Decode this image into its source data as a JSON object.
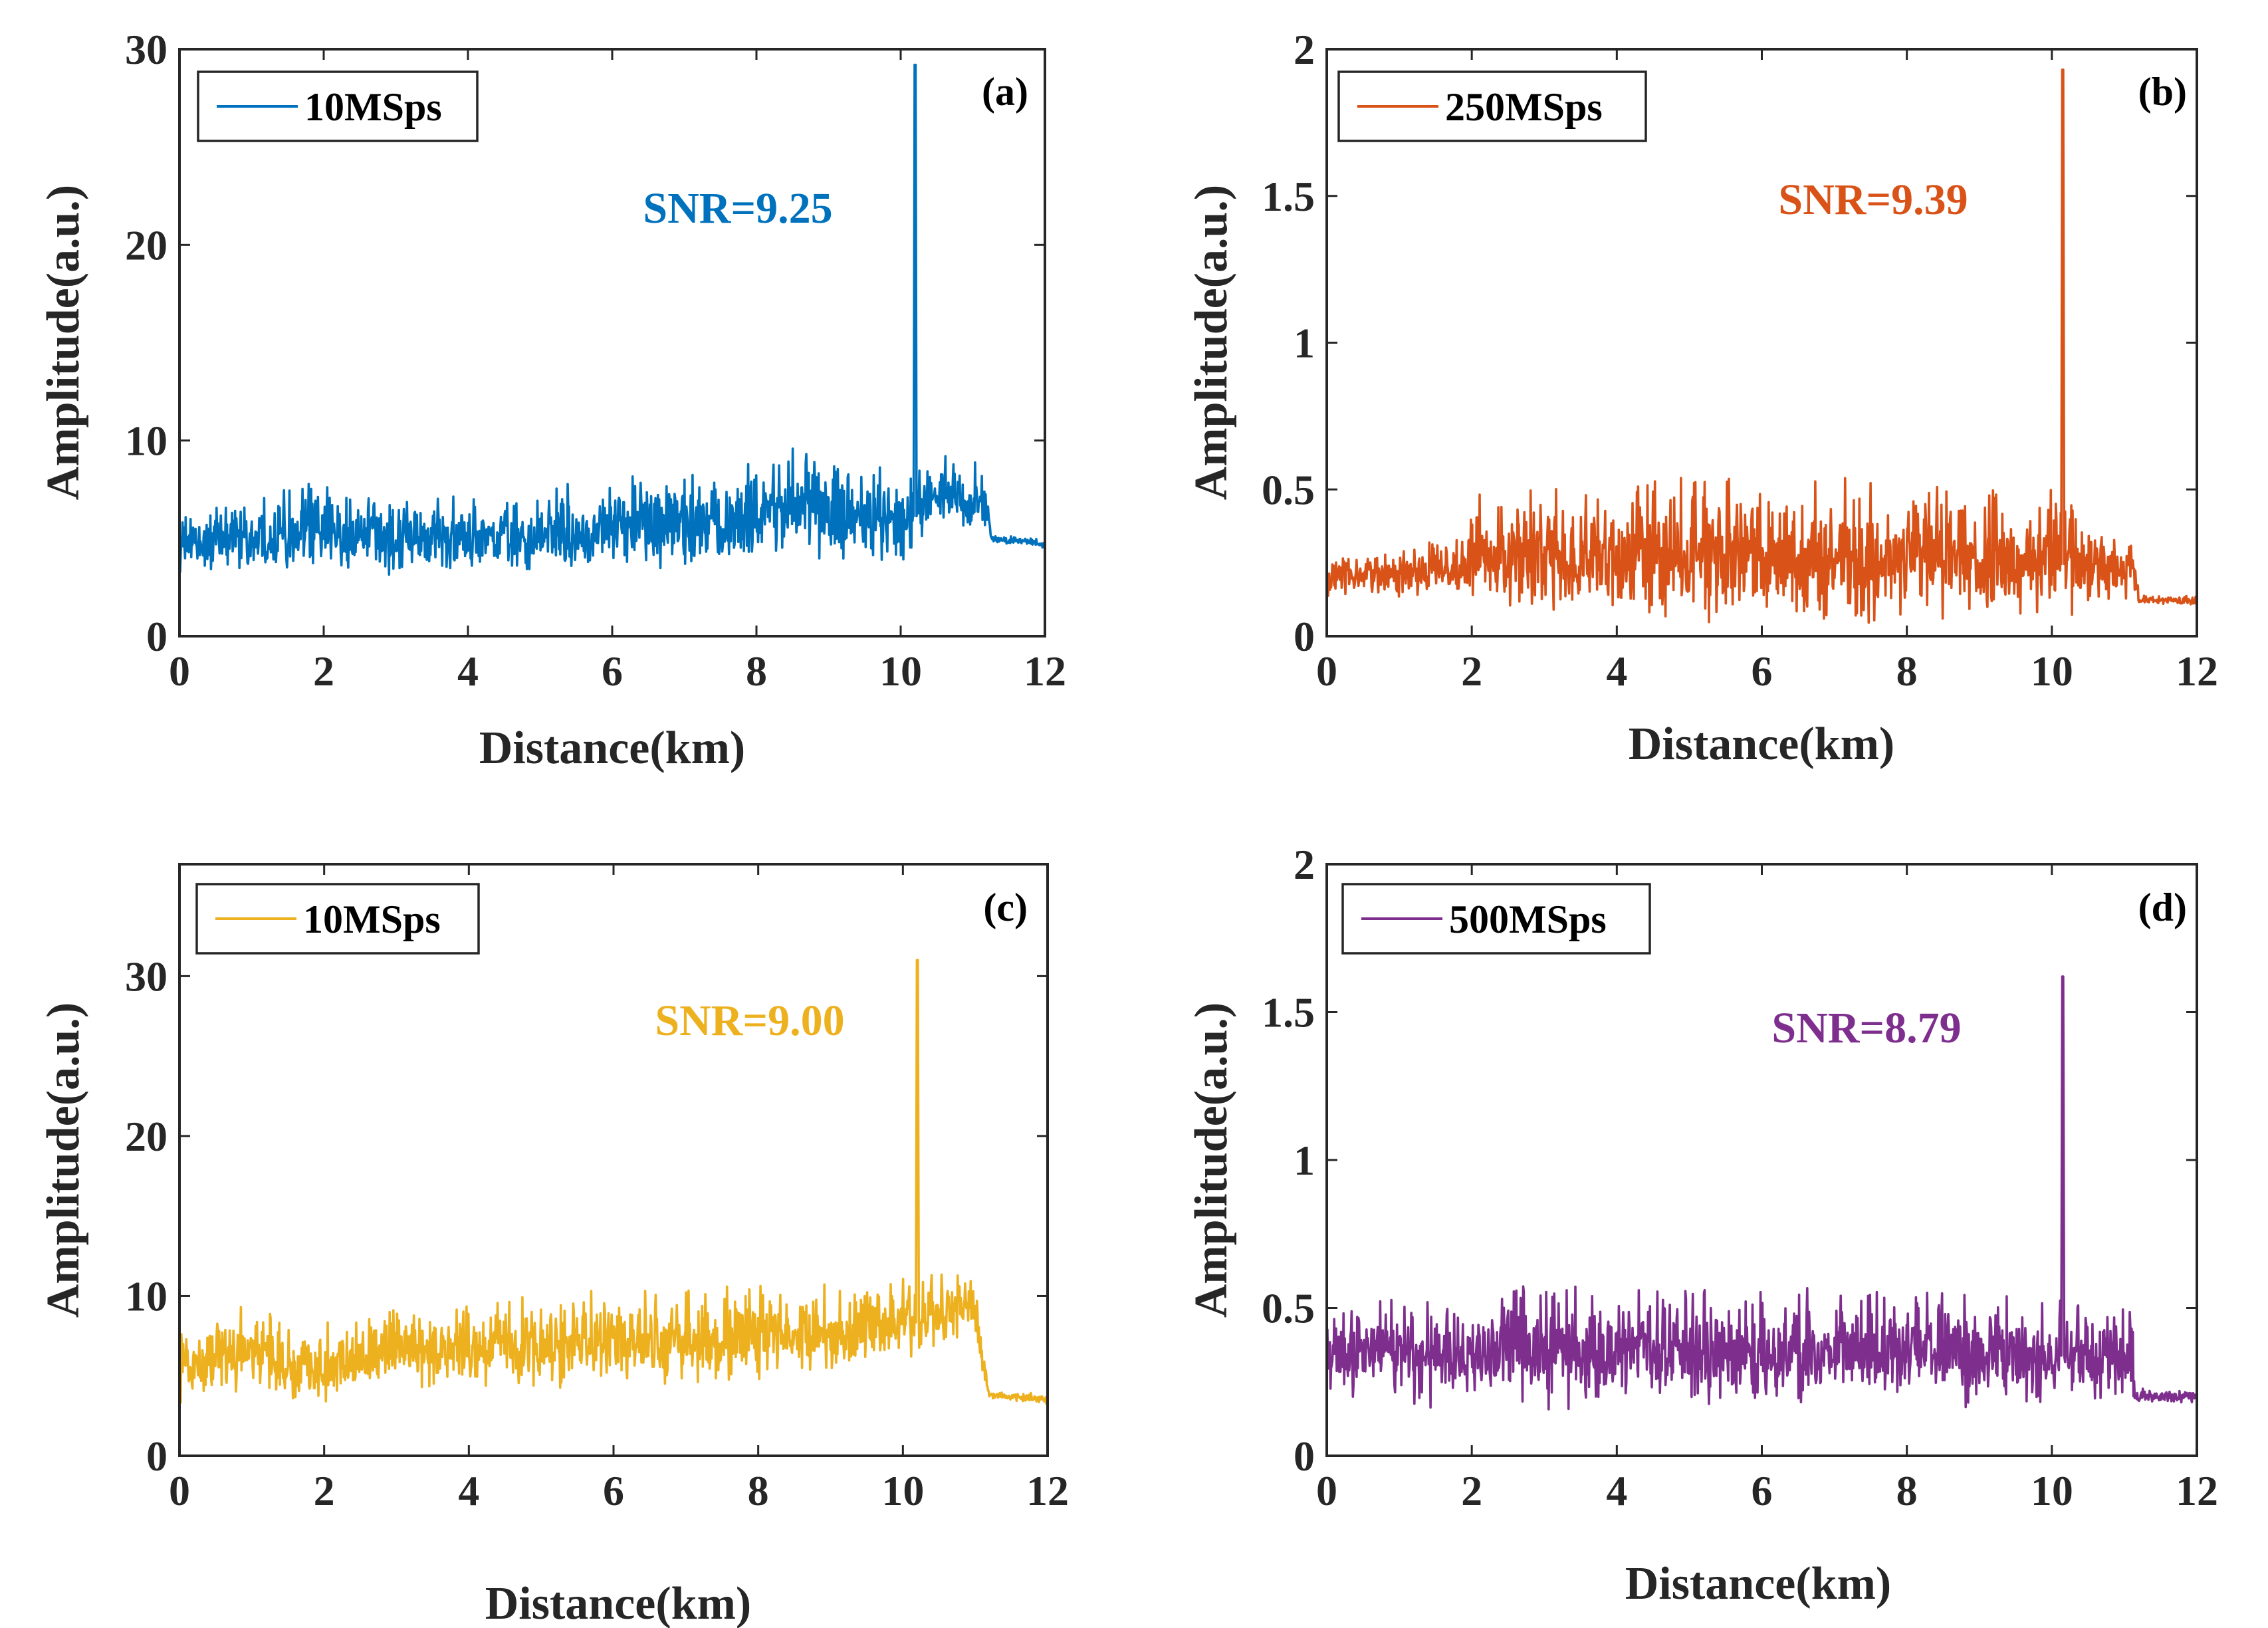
{
  "chart_data": [
    {
      "type": "line",
      "panel_label": "(a)",
      "xlabel": "Distance(km)",
      "ylabel": "Amplitude(a.u.)",
      "xlim": [
        0,
        12
      ],
      "ylim": [
        0,
        30
      ],
      "xticks": [
        "0",
        "2",
        "4",
        "6",
        "8",
        "10",
        "12"
      ],
      "yticks": [
        "0",
        "10",
        "20",
        "30"
      ],
      "legend": "top-left",
      "series": [
        {
          "name": "10MSps",
          "color": "#0072BD",
          "trend": [
            [
              0,
              4.7
            ],
            [
              1.8,
              5.3
            ],
            [
              2.2,
              5.0
            ],
            [
              3,
              5.0
            ],
            [
              4,
              4.9
            ],
            [
              5,
              5.0
            ],
            [
              6,
              5.5
            ],
            [
              7,
              5.4
            ],
            [
              8,
              6.0
            ],
            [
              8.6,
              7.0
            ],
            [
              9.2,
              6.0
            ],
            [
              10.1,
              5.6
            ],
            [
              10.4,
              7.2
            ],
            [
              11.2,
              6.8
            ],
            [
              11.25,
              5.0
            ],
            [
              12,
              4.7
            ]
          ],
          "noise_amplitude": [
            [
              0,
              1.1
            ],
            [
              1.8,
              1.4
            ],
            [
              4,
              1.3
            ],
            [
              6,
              1.5
            ],
            [
              8.6,
              1.9
            ],
            [
              10.1,
              1.5
            ],
            [
              11.2,
              1.2
            ],
            [
              11.25,
              0.15
            ],
            [
              12,
              0.15
            ]
          ],
          "peak": {
            "x": 10.2,
            "y": 29.2
          }
        }
      ],
      "annotation": {
        "text": "SNR=9.25",
        "color": "#0072BD"
      }
    },
    {
      "type": "line",
      "panel_label": "(b)",
      "xlabel": "Distance(km)",
      "ylabel": "Amplitude(a.u.)",
      "xlim": [
        0,
        12
      ],
      "ylim": [
        0,
        2
      ],
      "xticks": [
        "0",
        "2",
        "4",
        "6",
        "8",
        "10",
        "12"
      ],
      "yticks": [
        "0",
        "0.5",
        "1",
        "1.5",
        "2"
      ],
      "legend": "top-left",
      "series": [
        {
          "name": "250MSps",
          "color": "#D95319",
          "trend": [
            [
              0,
              0.13
            ],
            [
              0.1,
              0.2
            ],
            [
              1.95,
              0.22
            ],
            [
              2.0,
              0.26
            ],
            [
              6,
              0.27
            ],
            [
              10,
              0.25
            ],
            [
              11.15,
              0.22
            ],
            [
              11.2,
              0.12
            ],
            [
              12,
              0.12
            ]
          ],
          "noise_amplitude": [
            [
              0,
              0.05
            ],
            [
              1.95,
              0.07
            ],
            [
              2.0,
              0.14
            ],
            [
              6.4,
              0.16
            ],
            [
              10,
              0.14
            ],
            [
              11.15,
              0.06
            ],
            [
              11.2,
              0.01
            ],
            [
              12,
              0.01
            ]
          ],
          "peak": {
            "x": 10.15,
            "y": 1.93
          }
        }
      ],
      "annotation": {
        "text": "SNR=9.39",
        "color": "#D95319"
      }
    },
    {
      "type": "line",
      "panel_label": "(c)",
      "xlabel": "Distance(km)",
      "ylabel": "Amplitude(a.u.)",
      "xlim": [
        0,
        12
      ],
      "ylim": [
        0,
        37
      ],
      "xticks": [
        "0",
        "2",
        "4",
        "6",
        "8",
        "10",
        "12"
      ],
      "yticks": [
        "0",
        "10",
        "20",
        "30"
      ],
      "legend": "top-left",
      "series": [
        {
          "name": "10MSps",
          "color": "#EDB120",
          "trend": [
            [
              0,
              5.5
            ],
            [
              1.0,
              6.5
            ],
            [
              1.6,
              5.0
            ],
            [
              3,
              6.5
            ],
            [
              6,
              7.0
            ],
            [
              9,
              7.5
            ],
            [
              10.1,
              8.2
            ],
            [
              11.0,
              9.5
            ],
            [
              11.1,
              6.0
            ],
            [
              11.2,
              3.8
            ],
            [
              12,
              3.5
            ]
          ],
          "noise_amplitude": [
            [
              0,
              1.6
            ],
            [
              5.5,
              1.9
            ],
            [
              10,
              1.8
            ],
            [
              11.0,
              1.2
            ],
            [
              11.2,
              0.2
            ],
            [
              12,
              0.2
            ]
          ],
          "peak": {
            "x": 10.2,
            "y": 31.0
          }
        }
      ],
      "annotation": {
        "text": "SNR=9.00",
        "color": "#EDB120"
      }
    },
    {
      "type": "line",
      "panel_label": "(d)",
      "xlabel": "Distance(km)",
      "ylabel": "Amplitude(a.u.)",
      "xlim": [
        0,
        12
      ],
      "ylim": [
        0,
        2
      ],
      "xticks": [
        "0",
        "2",
        "4",
        "6",
        "8",
        "10",
        "12"
      ],
      "yticks": [
        "0",
        "0.5",
        "1",
        "1.5",
        "2"
      ],
      "legend": "top-left",
      "series": [
        {
          "name": "500MSps",
          "color": "#7E2F8E",
          "trend": [
            [
              0,
              0.33
            ],
            [
              3,
              0.35
            ],
            [
              6,
              0.34
            ],
            [
              9,
              0.35
            ],
            [
              11.1,
              0.33
            ],
            [
              11.15,
              0.2
            ],
            [
              12,
              0.2
            ]
          ],
          "noise_amplitude": [
            [
              0,
              0.1
            ],
            [
              3,
              0.13
            ],
            [
              6,
              0.13
            ],
            [
              11.1,
              0.11
            ],
            [
              11.15,
              0.015
            ],
            [
              12,
              0.015
            ]
          ],
          "peak": {
            "x": 10.15,
            "y": 1.62
          }
        }
      ],
      "annotation": {
        "text": "SNR=8.79",
        "color": "#7E2F8E"
      }
    }
  ]
}
